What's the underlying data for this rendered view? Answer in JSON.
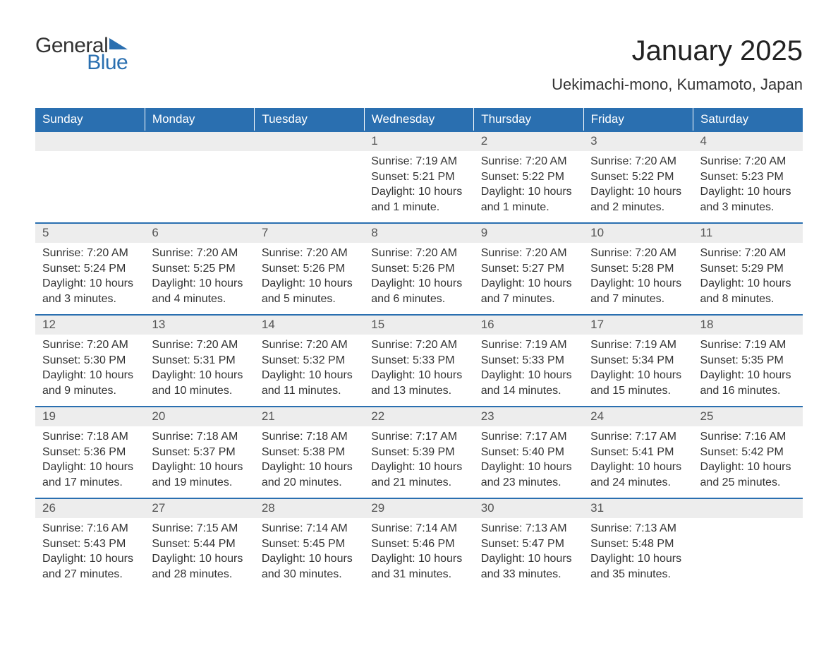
{
  "brand": {
    "name_part1": "General",
    "name_part2": "Blue",
    "text_color": "#333333",
    "accent_color": "#2a6fb0"
  },
  "header": {
    "month_title": "January 2025",
    "location": "Uekimachi-mono, Kumamoto, Japan"
  },
  "styling": {
    "header_row_bg": "#2a6fb0",
    "header_row_text": "#ffffff",
    "daynum_bg": "#ededed",
    "daynum_text": "#555555",
    "body_text": "#333333",
    "row_border": "#2a6fb0",
    "page_bg": "#ffffff",
    "font_family": "Arial, Helvetica, sans-serif",
    "title_fontsize_pt": 30,
    "location_fontsize_pt": 16,
    "dayhead_fontsize_pt": 13,
    "cell_fontsize_pt": 12
  },
  "calendar": {
    "day_headers": [
      "Sunday",
      "Monday",
      "Tuesday",
      "Wednesday",
      "Thursday",
      "Friday",
      "Saturday"
    ],
    "weeks": [
      [
        null,
        null,
        null,
        {
          "num": "1",
          "sunrise": "Sunrise: 7:19 AM",
          "sunset": "Sunset: 5:21 PM",
          "daylight": "Daylight: 10 hours and 1 minute."
        },
        {
          "num": "2",
          "sunrise": "Sunrise: 7:20 AM",
          "sunset": "Sunset: 5:22 PM",
          "daylight": "Daylight: 10 hours and 1 minute."
        },
        {
          "num": "3",
          "sunrise": "Sunrise: 7:20 AM",
          "sunset": "Sunset: 5:22 PM",
          "daylight": "Daylight: 10 hours and 2 minutes."
        },
        {
          "num": "4",
          "sunrise": "Sunrise: 7:20 AM",
          "sunset": "Sunset: 5:23 PM",
          "daylight": "Daylight: 10 hours and 3 minutes."
        }
      ],
      [
        {
          "num": "5",
          "sunrise": "Sunrise: 7:20 AM",
          "sunset": "Sunset: 5:24 PM",
          "daylight": "Daylight: 10 hours and 3 minutes."
        },
        {
          "num": "6",
          "sunrise": "Sunrise: 7:20 AM",
          "sunset": "Sunset: 5:25 PM",
          "daylight": "Daylight: 10 hours and 4 minutes."
        },
        {
          "num": "7",
          "sunrise": "Sunrise: 7:20 AM",
          "sunset": "Sunset: 5:26 PM",
          "daylight": "Daylight: 10 hours and 5 minutes."
        },
        {
          "num": "8",
          "sunrise": "Sunrise: 7:20 AM",
          "sunset": "Sunset: 5:26 PM",
          "daylight": "Daylight: 10 hours and 6 minutes."
        },
        {
          "num": "9",
          "sunrise": "Sunrise: 7:20 AM",
          "sunset": "Sunset: 5:27 PM",
          "daylight": "Daylight: 10 hours and 7 minutes."
        },
        {
          "num": "10",
          "sunrise": "Sunrise: 7:20 AM",
          "sunset": "Sunset: 5:28 PM",
          "daylight": "Daylight: 10 hours and 7 minutes."
        },
        {
          "num": "11",
          "sunrise": "Sunrise: 7:20 AM",
          "sunset": "Sunset: 5:29 PM",
          "daylight": "Daylight: 10 hours and 8 minutes."
        }
      ],
      [
        {
          "num": "12",
          "sunrise": "Sunrise: 7:20 AM",
          "sunset": "Sunset: 5:30 PM",
          "daylight": "Daylight: 10 hours and 9 minutes."
        },
        {
          "num": "13",
          "sunrise": "Sunrise: 7:20 AM",
          "sunset": "Sunset: 5:31 PM",
          "daylight": "Daylight: 10 hours and 10 minutes."
        },
        {
          "num": "14",
          "sunrise": "Sunrise: 7:20 AM",
          "sunset": "Sunset: 5:32 PM",
          "daylight": "Daylight: 10 hours and 11 minutes."
        },
        {
          "num": "15",
          "sunrise": "Sunrise: 7:20 AM",
          "sunset": "Sunset: 5:33 PM",
          "daylight": "Daylight: 10 hours and 13 minutes."
        },
        {
          "num": "16",
          "sunrise": "Sunrise: 7:19 AM",
          "sunset": "Sunset: 5:33 PM",
          "daylight": "Daylight: 10 hours and 14 minutes."
        },
        {
          "num": "17",
          "sunrise": "Sunrise: 7:19 AM",
          "sunset": "Sunset: 5:34 PM",
          "daylight": "Daylight: 10 hours and 15 minutes."
        },
        {
          "num": "18",
          "sunrise": "Sunrise: 7:19 AM",
          "sunset": "Sunset: 5:35 PM",
          "daylight": "Daylight: 10 hours and 16 minutes."
        }
      ],
      [
        {
          "num": "19",
          "sunrise": "Sunrise: 7:18 AM",
          "sunset": "Sunset: 5:36 PM",
          "daylight": "Daylight: 10 hours and 17 minutes."
        },
        {
          "num": "20",
          "sunrise": "Sunrise: 7:18 AM",
          "sunset": "Sunset: 5:37 PM",
          "daylight": "Daylight: 10 hours and 19 minutes."
        },
        {
          "num": "21",
          "sunrise": "Sunrise: 7:18 AM",
          "sunset": "Sunset: 5:38 PM",
          "daylight": "Daylight: 10 hours and 20 minutes."
        },
        {
          "num": "22",
          "sunrise": "Sunrise: 7:17 AM",
          "sunset": "Sunset: 5:39 PM",
          "daylight": "Daylight: 10 hours and 21 minutes."
        },
        {
          "num": "23",
          "sunrise": "Sunrise: 7:17 AM",
          "sunset": "Sunset: 5:40 PM",
          "daylight": "Daylight: 10 hours and 23 minutes."
        },
        {
          "num": "24",
          "sunrise": "Sunrise: 7:17 AM",
          "sunset": "Sunset: 5:41 PM",
          "daylight": "Daylight: 10 hours and 24 minutes."
        },
        {
          "num": "25",
          "sunrise": "Sunrise: 7:16 AM",
          "sunset": "Sunset: 5:42 PM",
          "daylight": "Daylight: 10 hours and 25 minutes."
        }
      ],
      [
        {
          "num": "26",
          "sunrise": "Sunrise: 7:16 AM",
          "sunset": "Sunset: 5:43 PM",
          "daylight": "Daylight: 10 hours and 27 minutes."
        },
        {
          "num": "27",
          "sunrise": "Sunrise: 7:15 AM",
          "sunset": "Sunset: 5:44 PM",
          "daylight": "Daylight: 10 hours and 28 minutes."
        },
        {
          "num": "28",
          "sunrise": "Sunrise: 7:14 AM",
          "sunset": "Sunset: 5:45 PM",
          "daylight": "Daylight: 10 hours and 30 minutes."
        },
        {
          "num": "29",
          "sunrise": "Sunrise: 7:14 AM",
          "sunset": "Sunset: 5:46 PM",
          "daylight": "Daylight: 10 hours and 31 minutes."
        },
        {
          "num": "30",
          "sunrise": "Sunrise: 7:13 AM",
          "sunset": "Sunset: 5:47 PM",
          "daylight": "Daylight: 10 hours and 33 minutes."
        },
        {
          "num": "31",
          "sunrise": "Sunrise: 7:13 AM",
          "sunset": "Sunset: 5:48 PM",
          "daylight": "Daylight: 10 hours and 35 minutes."
        },
        null
      ]
    ]
  }
}
